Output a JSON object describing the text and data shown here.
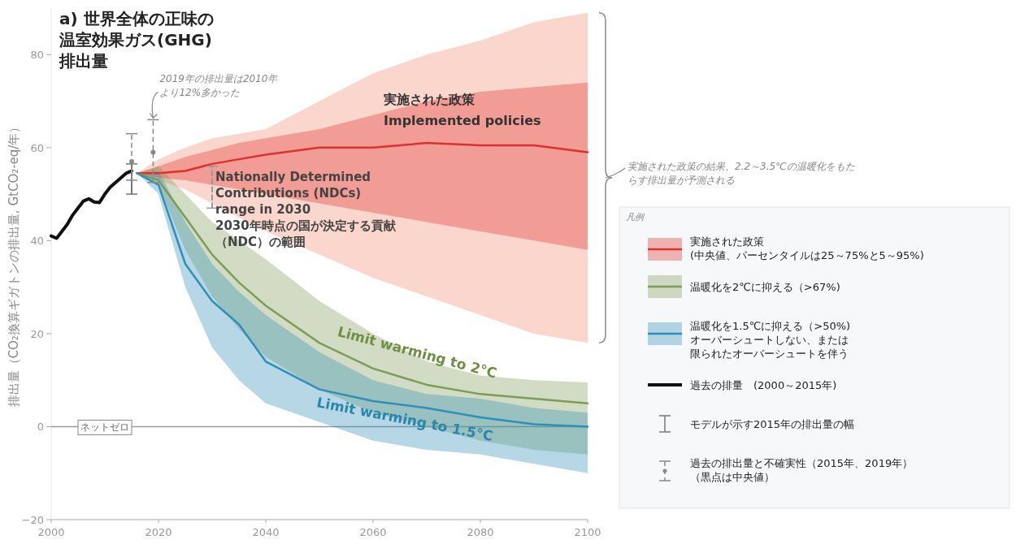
{
  "chart_data": {
    "type": "line",
    "title": "a) 世界全体の正味の温室効果ガス(GHG)排出量",
    "ylabel": "排出量（CO₂換算ギガトンの排出量, GtCO₂-eq/年）",
    "legend_title": "凡例",
    "xlim": [
      2000,
      2100
    ],
    "xticks": [
      2000,
      2020,
      2040,
      2060,
      2080,
      2100
    ],
    "ylim": [
      -20,
      90
    ],
    "yticks": [
      -20,
      0,
      20,
      40,
      60,
      80
    ],
    "grid": false,
    "legend": "right",
    "x": [
      2016,
      2020,
      2025,
      2030,
      2035,
      2040,
      2050,
      2060,
      2070,
      2080,
      2090,
      2100
    ],
    "series": [
      {
        "color": "#f08a6c",
        "values": [
          null,
          null,
          null,
          null,
          null,
          null,
          null,
          null,
          null,
          null,
          null,
          null
        ],
        "lower": [
          54.5,
          53,
          51,
          48,
          45,
          42,
          37,
          32,
          28,
          24,
          20,
          18
        ],
        "upper": [
          54.5,
          57.5,
          60,
          62,
          63,
          64,
          70,
          76,
          80,
          83,
          87,
          89
        ]
      },
      {
        "name": "実施された政策\n(中央値、パーセンタイルは25～75%と5～95%)",
        "color": "#e0302a",
        "values": [
          54.5,
          54.5,
          55,
          56.5,
          57.5,
          58.5,
          60,
          60,
          61,
          60.5,
          60.5,
          59
        ],
        "lower": [
          54.5,
          53.5,
          53,
          52,
          51,
          50,
          48,
          46,
          44,
          42,
          40,
          38
        ],
        "upper": [
          54.5,
          56,
          58,
          59.5,
          61,
          62,
          64,
          67,
          70,
          72,
          73,
          74
        ]
      },
      {
        "name": "温暖化を2℃に抑える（>67%)",
        "color": "#7d9c55",
        "values": [
          54.5,
          53,
          45,
          37,
          31,
          26,
          18,
          12.5,
          9,
          7,
          6,
          5
        ],
        "lower": [
          54.5,
          52,
          38,
          28,
          21,
          15,
          8,
          3,
          0,
          -3,
          -5,
          -6
        ],
        "upper": [
          54.5,
          56,
          50,
          44,
          40,
          36,
          27,
          20,
          14,
          11,
          10,
          9.5
        ]
      },
      {
        "name": "温暖化を1.5℃に抑える（>50%)\nオーバーシュートしない、または限られたオーバーシュートを伴う",
        "color": "#2e8fb8",
        "values": [
          54.5,
          52,
          35,
          27,
          22,
          14,
          8,
          5.5,
          4,
          2,
          0.5,
          0
        ],
        "lower": [
          54.5,
          50,
          30,
          17,
          10,
          5,
          1,
          -3,
          -5,
          -6,
          -8,
          -10
        ],
        "upper": [
          54.5,
          55,
          44,
          35,
          29,
          24,
          16,
          10,
          7,
          6,
          4,
          3
        ]
      },
      {
        "name": "過去の排量　(2000～2015年)",
        "color": "#111111",
        "x": [
          2000,
          2001,
          2002,
          2003,
          2004,
          2005,
          2006,
          2007,
          2008,
          2009,
          2010,
          2011,
          2012,
          2013,
          2014,
          2015
        ],
        "values": [
          41,
          40.5,
          42,
          43.5,
          45.5,
          47,
          48.5,
          49,
          48.3,
          48.2,
          50,
          51.5,
          52.5,
          53.5,
          54.5,
          55
        ]
      },
      {
        "name": "モデルが示す2015年の排出量の幅",
        "color": "#777777",
        "x": [
          2015,
          2015
        ],
        "values": [
          50,
          56.5
        ]
      },
      {
        "name": "過去の排出量と不確実性（2015年、2019年）（黒点は中央値）",
        "type": "scatter",
        "color": "#888888",
        "marker": "circle",
        "line_style": "dashed",
        "x": [
          2015,
          2019
        ],
        "values": [
          57,
          59
        ],
        "errors": [
          [
            53,
            63
          ],
          [
            52.5,
            66
          ]
        ]
      },
      {
        "color": "#999999",
        "line_style": "dashed",
        "x": [
          2030,
          2030
        ],
        "values": [
          47,
          56
        ]
      }
    ],
    "ref_lines": [
      {
        "axis": "y",
        "value": 0,
        "label": "ネットゼロ",
        "color": "#9a9a9a"
      }
    ],
    "annotations": [
      {
        "text": "2019年の排出量は2010年より12%多かった",
        "x": 2019,
        "y": 66
      },
      "実施された政策の結果、2.2～3.5℃の温暖化をもたらす排出量が予測される",
      "実施された政策\nImplemented policies",
      {
        "text": "Nationally Determined\nContributions (NDCs)\nrange in 2030\n2030年時点の国が決定する貢献（NDC）の範囲",
        "x": 2030,
        "y": 56
      },
      {
        "text": "Limit warming to 2°C",
        "x": 2068,
        "y": 15
      },
      "Limit warming to 1.5°C"
    ]
  }
}
